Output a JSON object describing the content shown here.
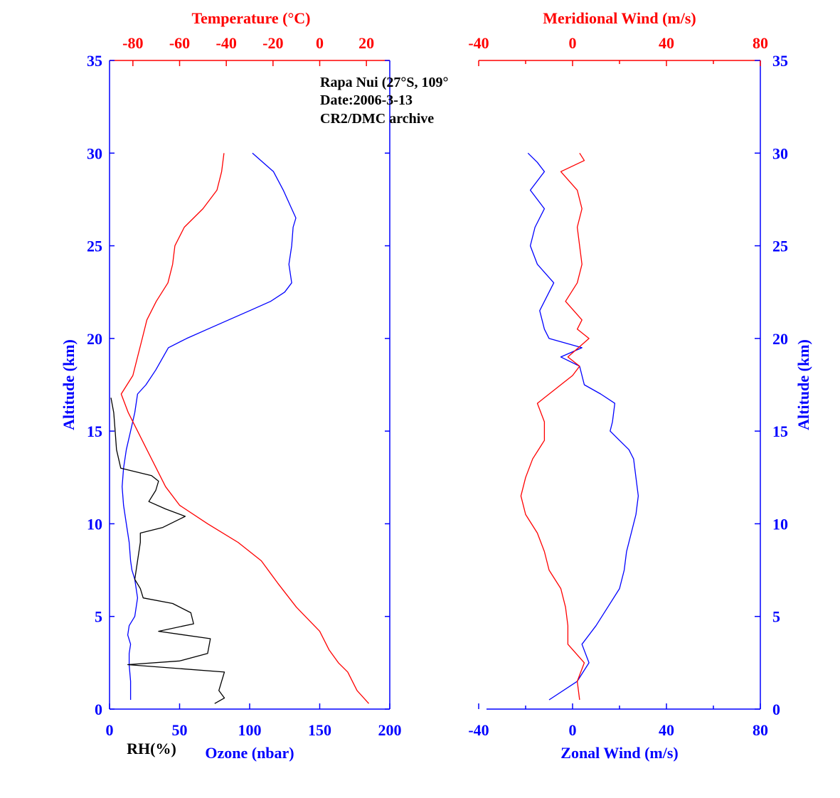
{
  "colors": {
    "blue": "#0000ff",
    "red": "#ff0000",
    "black": "#000000"
  },
  "annotation": {
    "line1": "Rapa Nui (27°S, 109°",
    "line2": "Date:2006-3-13",
    "line3": "CR2/DMC archive"
  },
  "chart_data": [
    {
      "type": "line",
      "panel": "left",
      "axes": {
        "altitude": {
          "label": "Altitude (km)",
          "range": [
            0,
            35
          ],
          "ticks": [
            0,
            5,
            10,
            15,
            20,
            25,
            30,
            35
          ]
        },
        "bottom": {
          "label": "Ozone (nbar)",
          "range": [
            0,
            200
          ],
          "ticks": [
            0,
            50,
            100,
            150,
            200
          ]
        },
        "top": {
          "label": "Temperature (°C)",
          "range": [
            -90,
            30
          ],
          "ticks": [
            -80,
            -60,
            -40,
            -20,
            0,
            20
          ]
        },
        "rh_label": "RH(%)"
      },
      "series": [
        {
          "name": "Ozone (nbar)",
          "color": "#0000ff",
          "axis": "bottom",
          "points": [
            [
              15,
              0.5
            ],
            [
              15,
              1.5
            ],
            [
              14,
              2.4
            ],
            [
              14,
              3.0
            ],
            [
              15,
              3.5
            ],
            [
              13,
              4.0
            ],
            [
              14,
              4.5
            ],
            [
              18,
              5.0
            ],
            [
              20,
              6.0
            ],
            [
              18,
              7.0
            ],
            [
              16,
              7.5
            ],
            [
              15,
              8.0
            ],
            [
              14,
              9.0
            ],
            [
              12,
              10.0
            ],
            [
              10,
              11.0
            ],
            [
              9,
              12.0
            ],
            [
              10,
              13.0
            ],
            [
              12,
              14.0
            ],
            [
              15,
              15.0
            ],
            [
              18,
              16.0
            ],
            [
              20,
              17.0
            ],
            [
              26,
              17.5
            ],
            [
              33,
              18.3
            ],
            [
              42,
              19.5
            ],
            [
              55,
              20.0
            ],
            [
              70,
              20.5
            ],
            [
              85,
              21.0
            ],
            [
              100,
              21.5
            ],
            [
              115,
              22.0
            ],
            [
              125,
              22.5
            ],
            [
              130,
              23.0
            ],
            [
              128,
              24.0
            ],
            [
              130,
              25.0
            ],
            [
              131,
              26.0
            ],
            [
              133,
              26.5
            ],
            [
              130,
              27.0
            ],
            [
              124,
              28.0
            ],
            [
              117,
              29.0
            ],
            [
              108,
              29.6
            ],
            [
              102,
              30.0
            ]
          ]
        },
        {
          "name": "RH(%)",
          "color": "#000000",
          "axis": "bottom",
          "points": [
            [
              75,
              0.3
            ],
            [
              82,
              0.6
            ],
            [
              78,
              1.0
            ],
            [
              82,
              2.0
            ],
            [
              13,
              2.4
            ],
            [
              50,
              2.6
            ],
            [
              70,
              3.0
            ],
            [
              72,
              3.8
            ],
            [
              35,
              4.2
            ],
            [
              60,
              4.6
            ],
            [
              58,
              5.2
            ],
            [
              45,
              5.7
            ],
            [
              24,
              6.0
            ],
            [
              22,
              6.5
            ],
            [
              18,
              7.0
            ],
            [
              20,
              8.0
            ],
            [
              22,
              9.0
            ],
            [
              22,
              9.5
            ],
            [
              38,
              9.8
            ],
            [
              54,
              10.4
            ],
            [
              40,
              10.8
            ],
            [
              28,
              11.2
            ],
            [
              33,
              11.8
            ],
            [
              35,
              12.3
            ],
            [
              30,
              12.6
            ],
            [
              8,
              13.0
            ],
            [
              5,
              14.0
            ],
            [
              4,
              15.0
            ],
            [
              3,
              16.0
            ],
            [
              1,
              16.8
            ]
          ]
        },
        {
          "name": "Temperature (°C)",
          "color": "#ff0000",
          "axis": "top",
          "points": [
            [
              21,
              0.3
            ],
            [
              16,
              1.0
            ],
            [
              12,
              2.0
            ],
            [
              8,
              2.5
            ],
            [
              4,
              3.2
            ],
            [
              0,
              4.2
            ],
            [
              -10,
              5.5
            ],
            [
              -18,
              6.8
            ],
            [
              -25,
              8.0
            ],
            [
              -35,
              9.0
            ],
            [
              -48,
              10.0
            ],
            [
              -60,
              11.0
            ],
            [
              -66,
              12.0
            ],
            [
              -70,
              13.0
            ],
            [
              -74,
              14.0
            ],
            [
              -78,
              15.0
            ],
            [
              -82,
              16.0
            ],
            [
              -85,
              17.0
            ],
            [
              -80,
              18.0
            ],
            [
              -78,
              19.0
            ],
            [
              -76,
              20.0
            ],
            [
              -74,
              21.0
            ],
            [
              -70,
              22.0
            ],
            [
              -65,
              23.0
            ],
            [
              -63,
              24.0
            ],
            [
              -62,
              25.0
            ],
            [
              -58,
              26.0
            ],
            [
              -50,
              27.0
            ],
            [
              -44,
              28.0
            ],
            [
              -42,
              29.0
            ],
            [
              -41,
              30.0
            ]
          ]
        }
      ]
    },
    {
      "type": "line",
      "panel": "right",
      "axes": {
        "altitude": {
          "label": "Altitude (km)",
          "range": [
            0,
            35
          ],
          "ticks": [
            0,
            5,
            10,
            15,
            20,
            25,
            30,
            35
          ]
        },
        "bottom": {
          "label": "Zonal Wind (m/s)",
          "range": [
            -40,
            80
          ],
          "ticks": [
            -40,
            0,
            40,
            80
          ]
        },
        "top": {
          "label": "Meridional Wind (m/s)",
          "range": [
            -40,
            80
          ],
          "ticks": [
            -40,
            0,
            40,
            80
          ]
        }
      },
      "series": [
        {
          "name": "Zonal Wind (m/s)",
          "color": "#0000ff",
          "axis": "bottom",
          "points": [
            [
              -10,
              0.5
            ],
            [
              2,
              1.5
            ],
            [
              7,
              2.5
            ],
            [
              4,
              3.5
            ],
            [
              10,
              4.5
            ],
            [
              15,
              5.5
            ],
            [
              20,
              6.5
            ],
            [
              22,
              7.5
            ],
            [
              23,
              8.5
            ],
            [
              25,
              9.5
            ],
            [
              27,
              10.5
            ],
            [
              28,
              11.5
            ],
            [
              27,
              12.5
            ],
            [
              26,
              13.5
            ],
            [
              24,
              14.0
            ],
            [
              20,
              14.5
            ],
            [
              16,
              15.0
            ],
            [
              17,
              15.5
            ],
            [
              18,
              16.5
            ],
            [
              12,
              17.0
            ],
            [
              5,
              17.5
            ],
            [
              3,
              18.5
            ],
            [
              -5,
              19.0
            ],
            [
              4,
              19.5
            ],
            [
              -10,
              20.0
            ],
            [
              -12,
              20.5
            ],
            [
              -14,
              21.5
            ],
            [
              -10,
              22.5
            ],
            [
              -8,
              23.0
            ],
            [
              -15,
              24.0
            ],
            [
              -18,
              25.0
            ],
            [
              -16,
              26.0
            ],
            [
              -12,
              27.0
            ],
            [
              -18,
              28.0
            ],
            [
              -12,
              29.0
            ],
            [
              -15,
              29.5
            ],
            [
              -19,
              30.0
            ]
          ]
        },
        {
          "name": "Meridional Wind (m/s)",
          "color": "#ff0000",
          "axis": "top",
          "points": [
            [
              3,
              0.5
            ],
            [
              2,
              1.5
            ],
            [
              5,
              2.5
            ],
            [
              -2,
              3.5
            ],
            [
              -2,
              4.5
            ],
            [
              -3,
              5.5
            ],
            [
              -5,
              6.5
            ],
            [
              -10,
              7.5
            ],
            [
              -12,
              8.5
            ],
            [
              -15,
              9.5
            ],
            [
              -20,
              10.5
            ],
            [
              -22,
              11.5
            ],
            [
              -20,
              12.5
            ],
            [
              -17,
              13.5
            ],
            [
              -12,
              14.5
            ],
            [
              -12,
              15.5
            ],
            [
              -15,
              16.5
            ],
            [
              -5,
              17.5
            ],
            [
              0,
              18.0
            ],
            [
              3,
              18.5
            ],
            [
              -2,
              19.0
            ],
            [
              7,
              20.0
            ],
            [
              2,
              20.5
            ],
            [
              4,
              21.0
            ],
            [
              -3,
              22.0
            ],
            [
              2,
              23.0
            ],
            [
              4,
              24.0
            ],
            [
              3,
              25.0
            ],
            [
              2,
              26.0
            ],
            [
              4,
              27.0
            ],
            [
              2,
              28.0
            ],
            [
              -5,
              29.0
            ],
            [
              5,
              29.6
            ],
            [
              3,
              30.0
            ]
          ]
        }
      ]
    }
  ]
}
